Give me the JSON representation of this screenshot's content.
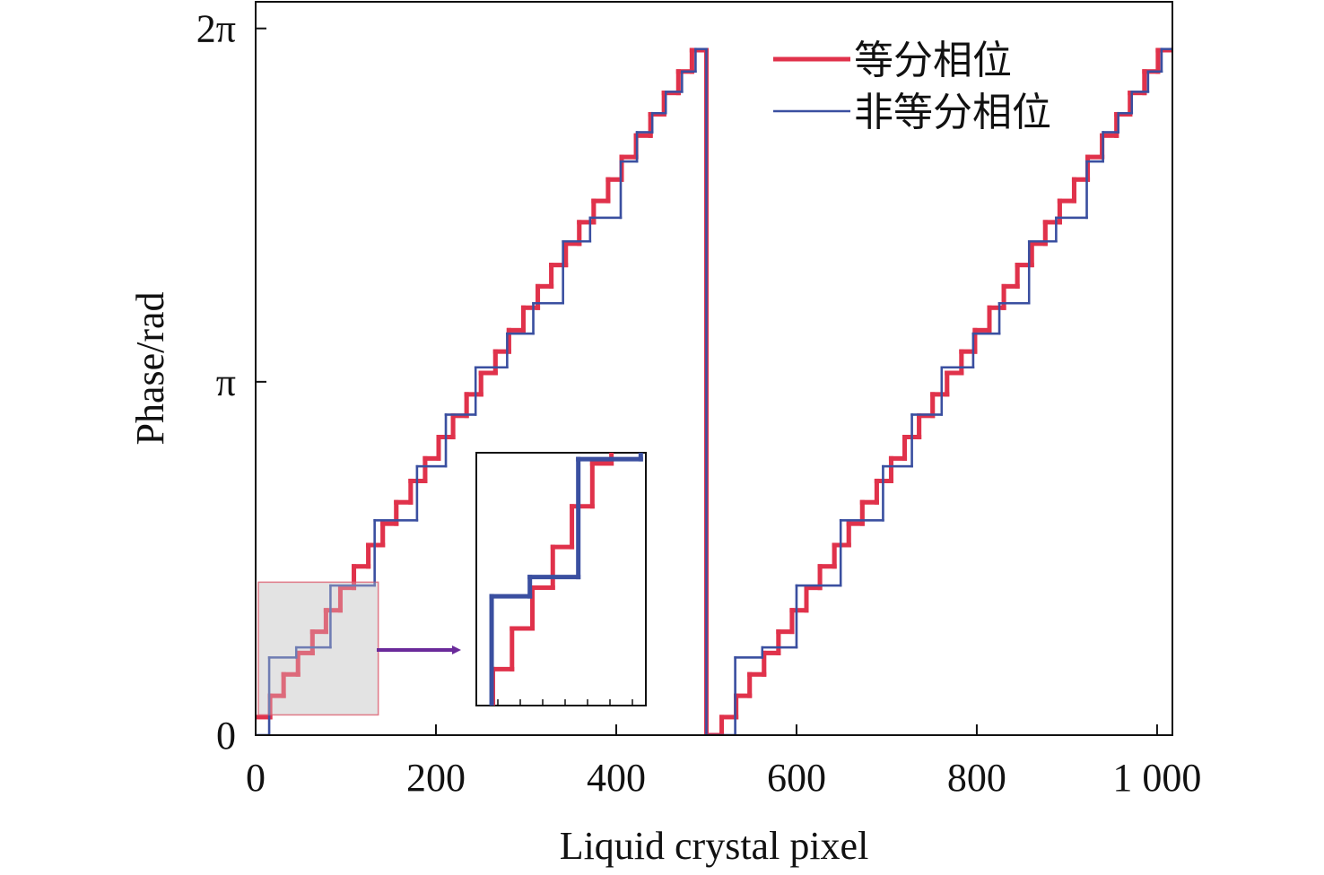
{
  "chart_data": {
    "type": "line",
    "step": "post",
    "xlabel": "Liquid crystal pixel",
    "ylabel": "Phase/rad",
    "xlim": [
      0,
      1017
    ],
    "ylim": [
      0,
      6.52
    ],
    "xticks": [
      0,
      200,
      400,
      600,
      800,
      {
        "value": 1000,
        "label": "1 000"
      }
    ],
    "yticks": [
      0,
      {
        "value": 3.14159,
        "label": "π"
      },
      {
        "value": 6.28319,
        "label": "2π"
      }
    ],
    "legend": "upper right",
    "series": [
      {
        "name": "等分相位",
        "color": "#e0324b",
        "x": [
          0,
          16,
          31,
          47,
          63,
          78,
          94,
          109,
          125,
          141,
          156,
          172,
          188,
          203,
          219,
          234,
          250,
          266,
          281,
          297,
          313,
          328,
          344,
          359,
          375,
          391,
          406,
          422,
          438,
          453,
          469,
          484,
          500,
          517,
          533,
          548,
          564,
          580,
          595,
          611,
          626,
          642,
          658,
          673,
          689,
          705,
          720,
          736,
          751,
          767,
          783,
          798,
          814,
          830,
          845,
          861,
          876,
          892,
          908,
          923,
          939,
          955,
          970,
          986,
          1001,
          1017
        ],
        "values": [
          0.16,
          0.35,
          0.54,
          0.73,
          0.92,
          1.11,
          1.31,
          1.5,
          1.69,
          1.88,
          2.07,
          2.26,
          2.46,
          2.65,
          2.84,
          3.03,
          3.22,
          3.41,
          3.6,
          3.8,
          3.99,
          4.18,
          4.37,
          4.56,
          4.75,
          4.94,
          5.14,
          5.33,
          5.52,
          5.71,
          5.9,
          6.09,
          0,
          0.16,
          0.35,
          0.54,
          0.73,
          0.92,
          1.11,
          1.31,
          1.5,
          1.69,
          1.88,
          2.07,
          2.26,
          2.46,
          2.65,
          2.84,
          3.03,
          3.22,
          3.41,
          3.6,
          3.8,
          3.99,
          4.18,
          4.37,
          4.56,
          4.75,
          4.94,
          5.14,
          5.33,
          5.52,
          5.71,
          5.9,
          6.09,
          6.09
        ]
      },
      {
        "name": "非等分相位",
        "color": "#3a4fa0",
        "x": [
          0,
          15,
          45,
          83,
          132,
          179,
          211,
          244,
          279,
          308,
          341,
          371,
          405,
          423,
          440,
          455,
          473,
          488,
          500,
          532,
          562,
          600,
          649,
          696,
          728,
          761,
          796,
          825,
          858,
          888,
          922,
          940,
          957,
          972,
          990,
          1005,
          1017
        ],
        "values": [
          0,
          0.69,
          0.78,
          1.33,
          1.91,
          2.39,
          2.85,
          3.27,
          3.57,
          3.84,
          4.39,
          4.6,
          5.1,
          5.36,
          5.53,
          5.72,
          5.9,
          6.1,
          0,
          0.69,
          0.78,
          1.33,
          1.91,
          2.39,
          2.85,
          3.27,
          3.57,
          3.84,
          4.39,
          4.6,
          5.1,
          5.36,
          5.53,
          5.72,
          5.9,
          6.1,
          6.1
        ]
      }
    ],
    "inset": {
      "xlim": [
        3,
        136
      ],
      "ylim": [
        0.18,
        1.36
      ]
    }
  }
}
